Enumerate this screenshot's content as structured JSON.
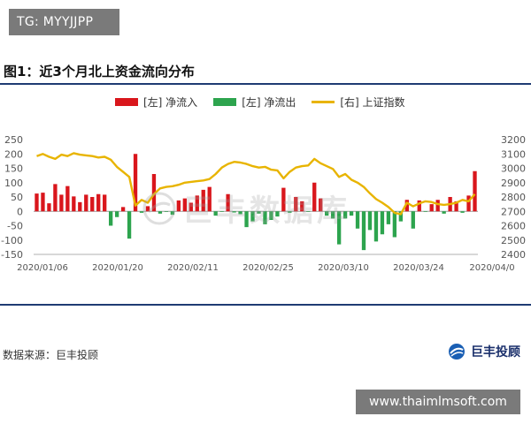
{
  "overlay": {
    "corner_tag": "TG: MYYJJPP",
    "site_tag": "www.thaimlmsoft.com"
  },
  "figure": {
    "title": "图1：近3个月北上资金流向分布",
    "source": "数据来源：巨丰投顾",
    "brand": "巨丰投顾",
    "watermark": "巨丰数据库"
  },
  "colors": {
    "inflow": "#d9161c",
    "outflow": "#2da44e",
    "index_line": "#e8b400",
    "rule": "#1f3b73"
  },
  "chart_data": {
    "type": "bar",
    "title": "近3个月北上资金流向分布",
    "x_tick_labels": [
      "2020/01/06",
      "2020/01/20",
      "2020/02/11",
      "2020/02/25",
      "2020/03/10",
      "2020/03/24",
      "2020/04/0"
    ],
    "y_left": {
      "ticks": [
        250,
        200,
        150,
        100,
        50,
        0,
        -50,
        -100,
        -150
      ],
      "ylim": [
        -150,
        250
      ]
    },
    "y_right": {
      "ticks": [
        3200,
        3100,
        3000,
        2900,
        2800,
        2700,
        2600,
        2500,
        2400
      ],
      "ylim": [
        2400,
        3200
      ]
    },
    "series": [
      {
        "name": "[左] 净流入",
        "axis": "left",
        "type": "bar",
        "values": [
          62,
          65,
          28,
          95,
          58,
          88,
          52,
          32,
          58,
          50,
          60,
          58,
          0,
          0,
          15,
          0,
          200,
          0,
          18,
          130,
          0,
          0,
          0,
          38,
          45,
          30,
          55,
          75,
          85,
          0,
          0,
          60,
          0,
          0,
          0,
          0,
          0,
          0,
          0,
          0,
          82,
          0,
          50,
          35,
          0,
          100,
          45,
          0,
          0,
          0,
          0,
          0,
          0,
          0,
          0,
          0,
          0,
          0,
          0,
          0,
          40,
          0,
          38,
          0,
          25,
          40,
          0,
          50,
          35,
          0,
          55,
          140
        ]
      },
      {
        "name": "[左] 净流出",
        "axis": "left",
        "type": "bar",
        "values": [
          0,
          0,
          0,
          0,
          0,
          0,
          0,
          0,
          0,
          0,
          0,
          0,
          -50,
          -20,
          0,
          -95,
          0,
          -5,
          0,
          0,
          -8,
          -2,
          -12,
          0,
          0,
          0,
          0,
          0,
          0,
          -15,
          -2,
          0,
          -4,
          -10,
          -55,
          -35,
          -8,
          -45,
          -30,
          -18,
          0,
          -5,
          0,
          0,
          -2,
          0,
          0,
          -15,
          -25,
          -115,
          -25,
          -15,
          -60,
          -135,
          -65,
          -105,
          -80,
          -45,
          -90,
          -35,
          0,
          -60,
          0,
          -2,
          0,
          0,
          -8,
          0,
          0,
          -5,
          0,
          0
        ]
      },
      {
        "name": "[右] 上证指数",
        "axis": "right",
        "type": "line",
        "values": [
          3085,
          3100,
          3080,
          3065,
          3095,
          3085,
          3105,
          3095,
          3090,
          3085,
          3075,
          3080,
          3060,
          3010,
          2975,
          2940,
          2740,
          2780,
          2760,
          2820,
          2860,
          2870,
          2875,
          2885,
          2900,
          2905,
          2910,
          2915,
          2925,
          2960,
          3005,
          3030,
          3045,
          3040,
          3030,
          3015,
          3005,
          3010,
          2990,
          2985,
          2930,
          2975,
          3005,
          3015,
          3020,
          3065,
          3035,
          3015,
          2995,
          2940,
          2960,
          2920,
          2900,
          2870,
          2825,
          2785,
          2760,
          2730,
          2690,
          2680,
          2760,
          2735,
          2755,
          2770,
          2765,
          2750,
          2745,
          2750,
          2760,
          2780,
          2770,
          2820
        ]
      }
    ],
    "grid": false,
    "legend_position": "top"
  }
}
